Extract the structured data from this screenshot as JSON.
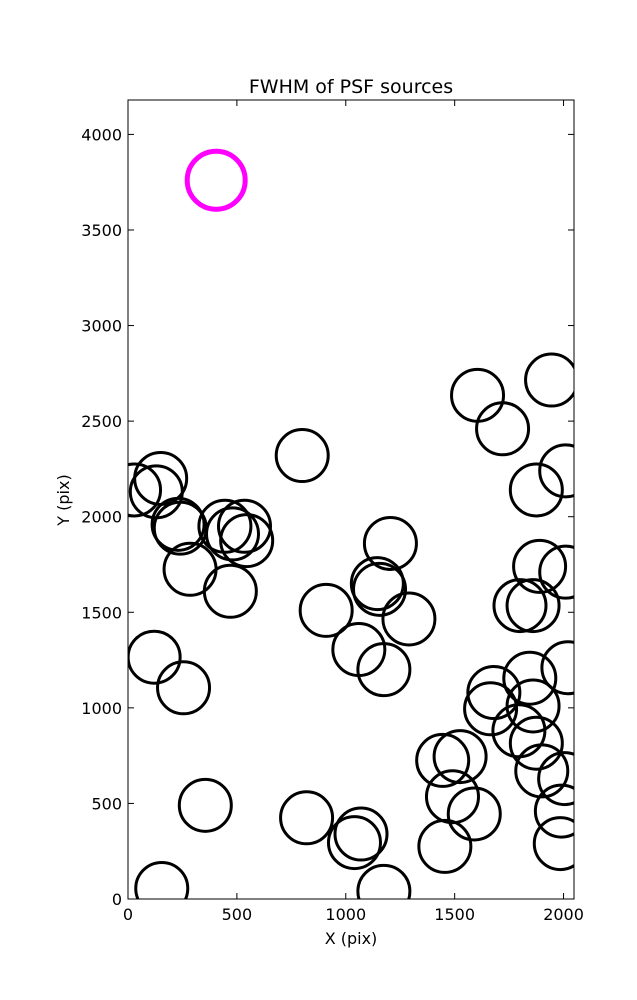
{
  "chart_data": {
    "type": "scatter",
    "title": "FWHM of PSF sources",
    "xlabel": "X (pix)",
    "ylabel": "Y (pix)",
    "xlim": [
      0,
      2048
    ],
    "ylim": [
      0,
      4180
    ],
    "xticks": [
      0,
      500,
      1000,
      1500,
      2000
    ],
    "yticks": [
      0,
      500,
      1000,
      1500,
      2000,
      2500,
      3000,
      3500,
      4000
    ],
    "grid": false,
    "reference": {
      "x": 405,
      "y": 3760,
      "color": "#ff00ff"
    },
    "marker_color": "#000000",
    "points": [
      {
        "x": 30,
        "y": 2140
      },
      {
        "x": 130,
        "y": 2130
      },
      {
        "x": 150,
        "y": 2200
      },
      {
        "x": 230,
        "y": 1960
      },
      {
        "x": 240,
        "y": 1940
      },
      {
        "x": 285,
        "y": 1725
      },
      {
        "x": 445,
        "y": 1950
      },
      {
        "x": 480,
        "y": 1910
      },
      {
        "x": 535,
        "y": 1950
      },
      {
        "x": 545,
        "y": 1875
      },
      {
        "x": 470,
        "y": 1610
      },
      {
        "x": 800,
        "y": 2320
      },
      {
        "x": 120,
        "y": 1265
      },
      {
        "x": 255,
        "y": 1105
      },
      {
        "x": 355,
        "y": 490
      },
      {
        "x": 155,
        "y": 55
      },
      {
        "x": 820,
        "y": 425
      },
      {
        "x": 910,
        "y": 1510
      },
      {
        "x": 1060,
        "y": 1305
      },
      {
        "x": 1175,
        "y": 1200
      },
      {
        "x": 1145,
        "y": 1650
      },
      {
        "x": 1155,
        "y": 1620
      },
      {
        "x": 1205,
        "y": 1860
      },
      {
        "x": 1290,
        "y": 1465
      },
      {
        "x": 1070,
        "y": 340
      },
      {
        "x": 1040,
        "y": 295
      },
      {
        "x": 1175,
        "y": 40
      },
      {
        "x": 1445,
        "y": 725
      },
      {
        "x": 1525,
        "y": 745
      },
      {
        "x": 1490,
        "y": 535
      },
      {
        "x": 1590,
        "y": 445
      },
      {
        "x": 1455,
        "y": 275
      },
      {
        "x": 1605,
        "y": 2635
      },
      {
        "x": 1720,
        "y": 2460
      },
      {
        "x": 1945,
        "y": 2715
      },
      {
        "x": 1875,
        "y": 2140
      },
      {
        "x": 2010,
        "y": 2240
      },
      {
        "x": 1890,
        "y": 1740
      },
      {
        "x": 2010,
        "y": 1710
      },
      {
        "x": 1800,
        "y": 1535
      },
      {
        "x": 1860,
        "y": 1535
      },
      {
        "x": 1680,
        "y": 1080
      },
      {
        "x": 1665,
        "y": 995
      },
      {
        "x": 1845,
        "y": 1155
      },
      {
        "x": 1860,
        "y": 1010
      },
      {
        "x": 1795,
        "y": 880
      },
      {
        "x": 1875,
        "y": 815
      },
      {
        "x": 1900,
        "y": 670
      },
      {
        "x": 2020,
        "y": 1210
      },
      {
        "x": 2005,
        "y": 630
      },
      {
        "x": 1990,
        "y": 460
      },
      {
        "x": 1985,
        "y": 290
      }
    ]
  }
}
